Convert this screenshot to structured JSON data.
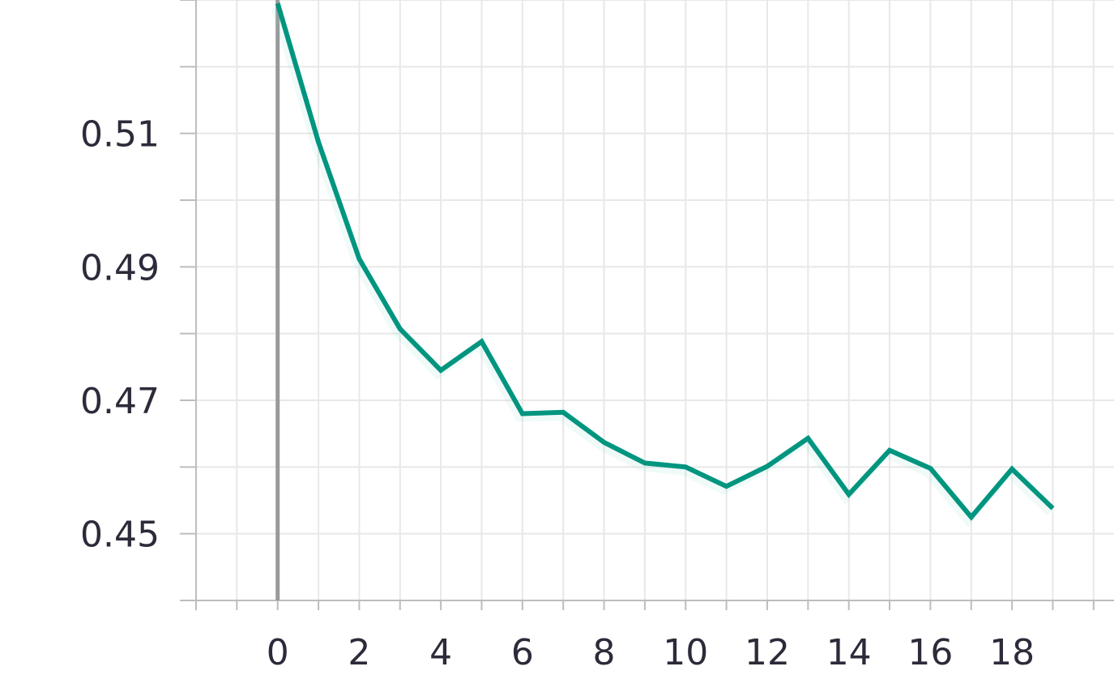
{
  "chart_data": {
    "type": "line",
    "title": "",
    "xlabel": "",
    "ylabel": "",
    "xlim": [
      -2,
      20.5
    ],
    "ylim": [
      0.44,
      0.53
    ],
    "x_ticks": [
      0,
      2,
      4,
      6,
      8,
      10,
      12,
      14,
      16,
      18
    ],
    "x_tick_labels": [
      "0",
      "2",
      "4",
      "6",
      "8",
      "10",
      "12",
      "14",
      "16",
      "18"
    ],
    "y_ticks": [
      0.45,
      0.47,
      0.49,
      0.51
    ],
    "y_tick_labels": [
      "0.45",
      "0.47",
      "0.49",
      "0.51"
    ],
    "grid": true,
    "colors": {
      "line": "#00957f",
      "band": "#7fd8cc",
      "grid": "#e8e8e8",
      "axis": "#bdbdbd",
      "zero_line": "#9a9a9a"
    },
    "series": [
      {
        "x": [
          0,
          1,
          2,
          3,
          4,
          5,
          6,
          7,
          8,
          9,
          10,
          11,
          12,
          13,
          14,
          15,
          16,
          17,
          18,
          19
        ],
        "values": [
          0.5295,
          0.5087,
          0.4912,
          0.4807,
          0.4745,
          0.4788,
          0.468,
          0.4682,
          0.4637,
          0.4606,
          0.46,
          0.4571,
          0.4601,
          0.4643,
          0.4559,
          0.4625,
          0.4598,
          0.4525,
          0.4597,
          0.4538
        ]
      }
    ]
  }
}
